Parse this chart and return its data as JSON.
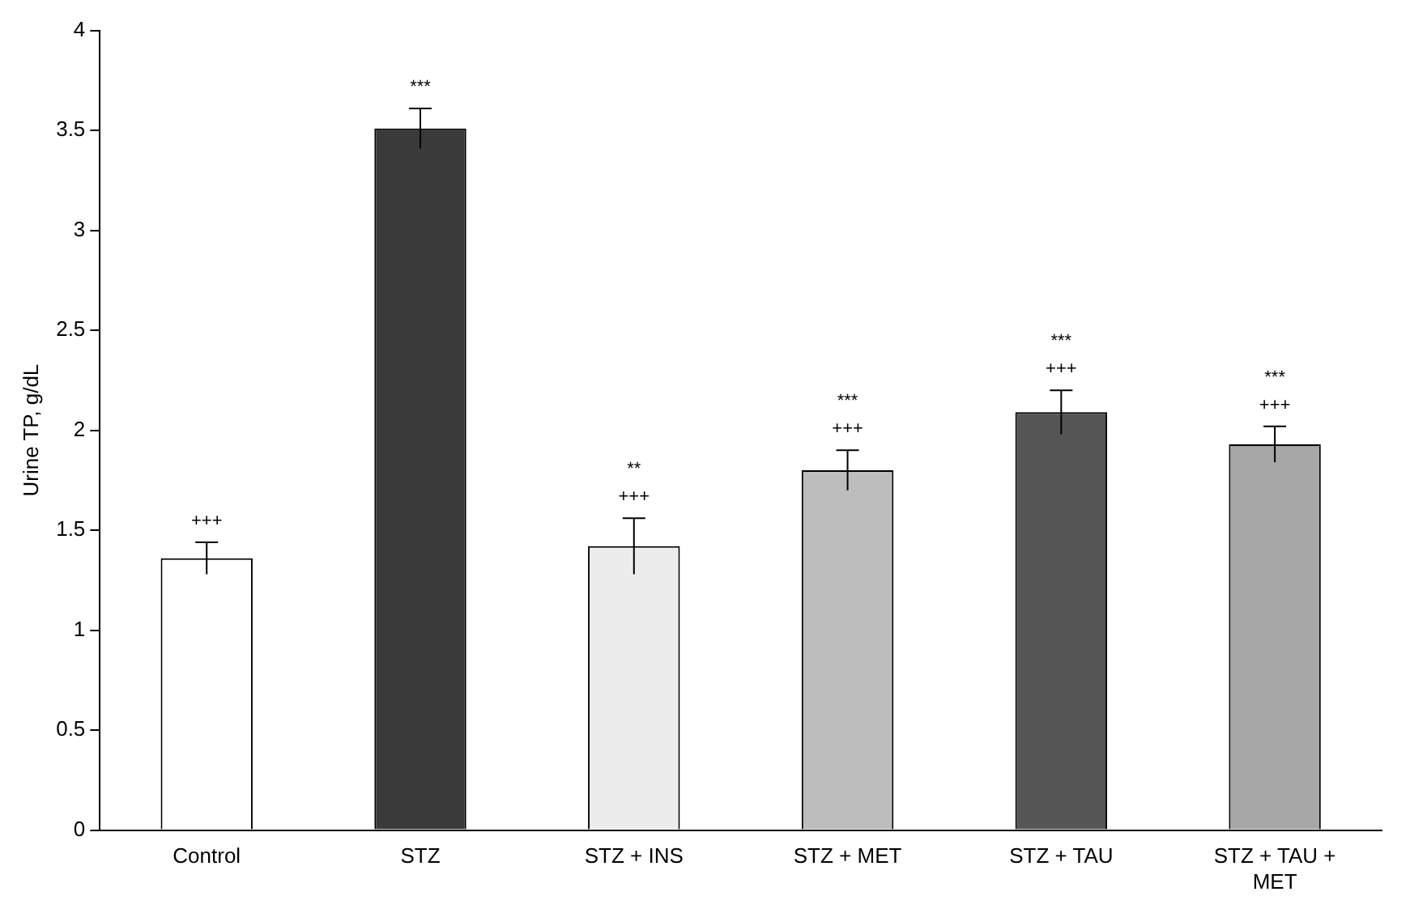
{
  "chart_data": {
    "type": "bar",
    "ylabel": "Urine TP, g/dL",
    "categories": [
      "Control",
      "STZ",
      "STZ + INS",
      "STZ + MET",
      "STZ + TAU",
      "STZ + TAU + MET"
    ],
    "values": [
      1.36,
      3.51,
      1.42,
      1.8,
      2.09,
      1.93
    ],
    "errors": [
      0.08,
      0.1,
      0.14,
      0.1,
      0.11,
      0.09
    ],
    "colors": [
      "#ffffff",
      "#3a3a3a",
      "#ececec",
      "#bdbdbd",
      "#555555",
      "#a6a6a6"
    ],
    "ylim": [
      0,
      4
    ],
    "yticks": [
      0,
      0.5,
      1,
      1.5,
      2,
      2.5,
      3,
      3.5,
      4
    ],
    "grid": false,
    "legend": false,
    "annotations": [
      {
        "text": "+++",
        "x": "Control",
        "y": 1.36
      },
      {
        "text": "***",
        "x": "STZ",
        "y": 3.51
      },
      {
        "text": "+++",
        "x": "STZ + INS",
        "y": 1.42
      },
      {
        "text": "**",
        "x": "STZ + INS",
        "y": 1.56
      },
      {
        "text": "+++",
        "x": "STZ + MET",
        "y": 1.8
      },
      {
        "text": "***",
        "x": "STZ + MET",
        "y": 1.9
      },
      {
        "text": "+++",
        "x": "STZ + TAU",
        "y": 2.09
      },
      {
        "text": "***",
        "x": "STZ + TAU",
        "y": 2.2
      },
      {
        "text": "+++",
        "x": "STZ + TAU + MET",
        "y": 1.93
      },
      {
        "text": "***",
        "x": "STZ + TAU + MET",
        "y": 2.02
      }
    ]
  }
}
